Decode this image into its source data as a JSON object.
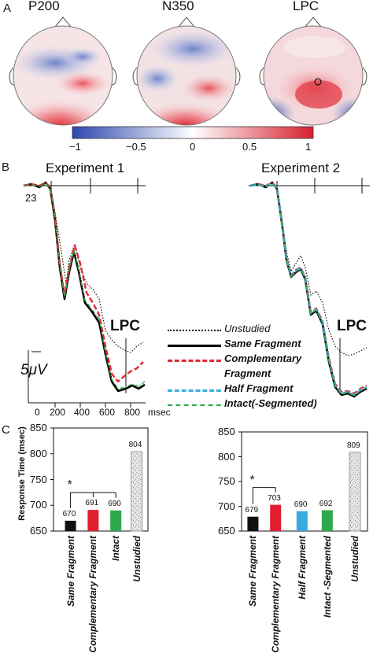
{
  "panel_labels": {
    "a": "A",
    "b": "B",
    "c": "C"
  },
  "topomaps": [
    {
      "label": "P200"
    },
    {
      "label": "N350"
    },
    {
      "label": "LPC"
    }
  ],
  "colorbar": {
    "ticks": [
      "−1",
      "−0.5",
      "0",
      "0.5",
      "1"
    ],
    "low_color": "#2b47b0",
    "mid_color": "#ffffff",
    "high_color": "#d7202e"
  },
  "experiments": {
    "exp1_title": "Experiment 1",
    "exp2_title": "Experiment 2"
  },
  "erp": {
    "electrode": "23",
    "component_label": "LPC",
    "scale_label": "5μV",
    "x_unit": "msec",
    "x_ticks": [
      "0",
      "200",
      "400",
      "600",
      "800"
    ]
  },
  "legend": [
    {
      "label": "Unstudied",
      "style": "dotted",
      "color": "#111111"
    },
    {
      "label": "Same Fragment",
      "style": "solid",
      "color": "#000000"
    },
    {
      "label": "Complementary",
      "label2": "Fragment",
      "style": "dashed",
      "color": "#e02a36"
    },
    {
      "label": "Half Fragment",
      "style": "dashed",
      "color": "#39a9e0"
    },
    {
      "label": "Intact(-Segmented)",
      "style": "dashdot",
      "color": "#2ea84a"
    }
  ],
  "chart_data": [
    {
      "type": "bar",
      "ylabel": "Response Time (msec)",
      "ylim": [
        650,
        850
      ],
      "yticks": [
        650,
        700,
        750,
        800,
        850
      ],
      "categories": [
        "Same Fragment",
        "Complementary Fragment",
        "Intact",
        "Unstudied"
      ],
      "values": [
        670,
        691,
        690,
        804
      ],
      "value_labels": [
        "670",
        "691",
        "690",
        "804"
      ],
      "colors": [
        "#111111",
        "#e0202e",
        "#2ea84a",
        "#c8c8c8"
      ],
      "significance": {
        "symbol": "*",
        "from": "Same Fragment",
        "to": [
          "Complementary Fragment",
          "Intact"
        ]
      }
    },
    {
      "type": "bar",
      "ylabel": "",
      "ylim": [
        650,
        850
      ],
      "yticks": [
        650,
        700,
        750,
        800,
        850
      ],
      "categories": [
        "Same Fragment",
        "Complementary Fragment",
        "Half Fragment",
        "Intact -Segmented",
        "Unstudied"
      ],
      "values": [
        679,
        703,
        690,
        692,
        809
      ],
      "value_labels": [
        "679",
        "703",
        "690",
        "692",
        "809"
      ],
      "colors": [
        "#111111",
        "#e0202e",
        "#39a9e0",
        "#2ea84a",
        "#c8c8c8"
      ],
      "significance": {
        "symbol": "*",
        "from": "Same Fragment",
        "to": [
          "Complementary Fragment"
        ]
      }
    }
  ]
}
